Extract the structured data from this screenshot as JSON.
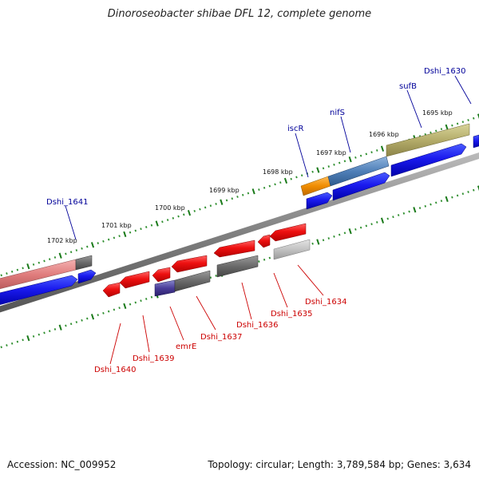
{
  "title": "Dinoroseobacter shibae DFL 12, complete genome",
  "footer": {
    "accession": "Accession: NC_009952",
    "summary": "Topology: circular; Length: 3,789,584 bp; Genes: 3,634"
  },
  "colors": {
    "backbone": "#8a8a8a",
    "tick_major": "#1a7a1a",
    "tick_minor": "#2f8f2f",
    "label_forward": "#000099",
    "label_reverse": "#cc0000"
  },
  "scale_kbp": [
    "1695 kbp",
    "1696 kbp",
    "1697 kbp",
    "1698 kbp",
    "1699 kbp",
    "1700 kbp",
    "1701 kbp",
    "1702 kbp"
  ],
  "genes_forward_strand": [
    {
      "label": "Dshi_1630",
      "color": "blue"
    },
    {
      "label": "sufB",
      "color": "khaki"
    },
    {
      "label": "nifS",
      "color": "steelblue"
    },
    {
      "label": "iscR",
      "color": "orange"
    },
    {
      "label": "Dshi_1641",
      "color": "salmon"
    }
  ],
  "genes_reverse_strand": [
    {
      "label": "Dshi_1634",
      "color": "lightgray"
    },
    {
      "label": "Dshi_1635",
      "color": "red"
    },
    {
      "label": "Dshi_1636",
      "color": "red"
    },
    {
      "label": "Dshi_1637",
      "color": "red"
    },
    {
      "label": "emrE",
      "color": "purple"
    },
    {
      "label": "Dshi_1639",
      "color": "red"
    },
    {
      "label": "Dshi_1640",
      "color": "red"
    }
  ]
}
